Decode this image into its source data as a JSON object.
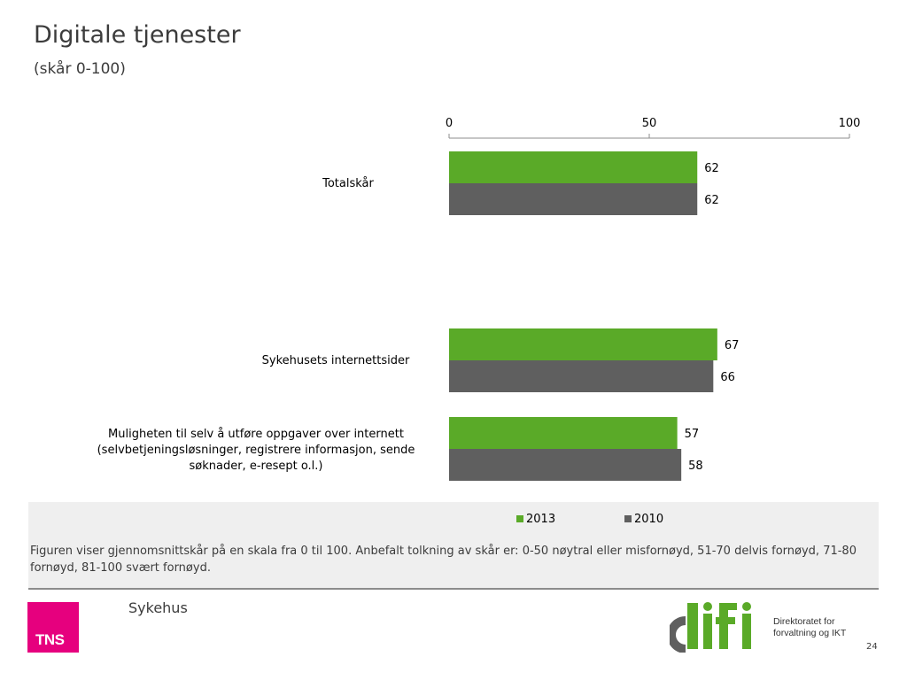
{
  "title": "Digitale tjenester",
  "subtitle": "(skår 0-100)",
  "chart_data": {
    "type": "bar",
    "orientation": "horizontal",
    "categories": [
      "Totalskår",
      "Sykehusets internettsider",
      "Muligheten til selv å utføre oppgaver over internett (selvbetjeningsløsninger, registrere informasjon, sende søknader, e-resept o.l.)"
    ],
    "series": [
      {
        "name": "2013",
        "color": "#5aaa28",
        "values": [
          62,
          67,
          57
        ]
      },
      {
        "name": "2010",
        "color": "#5f5f5f",
        "values": [
          62,
          66,
          58
        ]
      }
    ],
    "xlim": [
      0,
      100
    ],
    "xticks": [
      0,
      50,
      100
    ],
    "axis_position": "top",
    "legend_position": "bottom"
  },
  "note": "Figuren viser gjennomsnittskår på en skala fra 0 til 100. Anbefalt tolkning av skår er: 0-50 nøytral eller misfornøyd, 51-70 delvis fornøyd, 71-80 fornøyd, 81-100 svært fornøyd.",
  "footer": {
    "brand_logo_text": "TNS",
    "brand_color": "#e6007e",
    "segment": "Sykehus",
    "partner_logo_text": "difi",
    "partner_name_line1": "Direktoratet for",
    "partner_name_line2": "forvaltning og IKT",
    "page_number": "24"
  }
}
